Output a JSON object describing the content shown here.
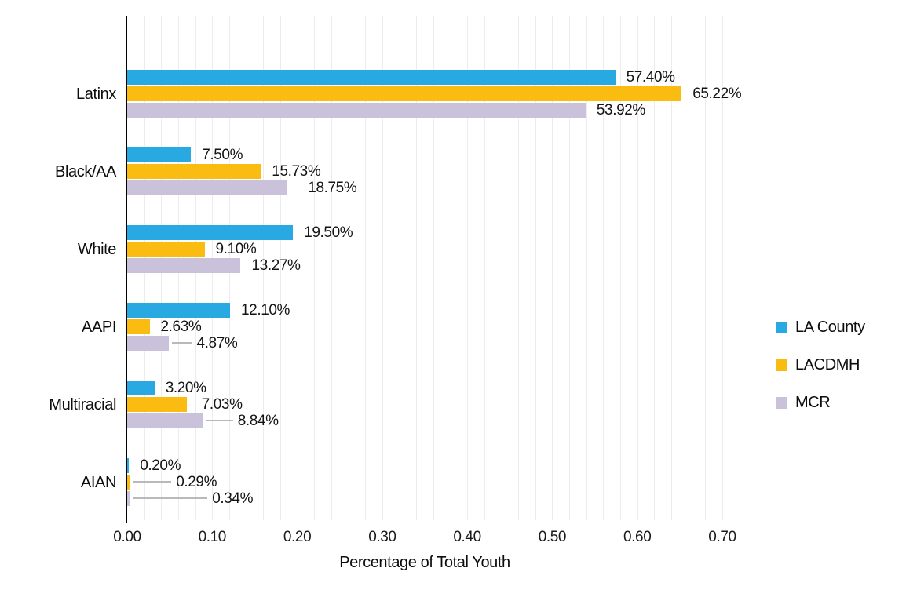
{
  "chart_data": {
    "type": "bar",
    "orientation": "horizontal",
    "xlabel": "Percentage of Total Youth",
    "categories": [
      "Latinx",
      "Black/AA",
      "White",
      "AAPI",
      "Multiracial",
      "AIAN"
    ],
    "series": [
      {
        "name": "LA County",
        "color": "#29A9E1",
        "values": [
          57.4,
          7.5,
          19.5,
          12.1,
          3.2,
          0.2
        ],
        "labels": [
          "57.40%",
          "7.50%",
          "19.50%",
          "12.10%",
          "3.20%",
          "0.20%"
        ]
      },
      {
        "name": "LACDMH",
        "color": "#FBBC12",
        "values": [
          65.22,
          15.73,
          9.1,
          2.63,
          7.03,
          0.29
        ],
        "labels": [
          "65.22%",
          "15.73%",
          "9.10%",
          "2.63%",
          "7.03%",
          "0.29%"
        ]
      },
      {
        "name": "MCR",
        "color": "#CAC1DA",
        "values": [
          53.92,
          18.75,
          13.27,
          4.87,
          8.84,
          0.34
        ],
        "labels": [
          "53.92%",
          "18.75%",
          "13.27%",
          "4.87%",
          "8.84%",
          "0.34%"
        ]
      }
    ],
    "x_axis": {
      "min": 0,
      "max": 0.7,
      "ticks": [
        "0.00",
        "0.10",
        "0.20",
        "0.30",
        "0.40",
        "0.50",
        "0.60",
        "0.70"
      ],
      "minor_gridline_step": 0.02
    },
    "legend_position": "right",
    "grid": "on"
  },
  "colors": {
    "axis_line": "#000000",
    "gridline": "#ECECF0",
    "leader_line": "#B9B9B9",
    "text": "#111111"
  }
}
